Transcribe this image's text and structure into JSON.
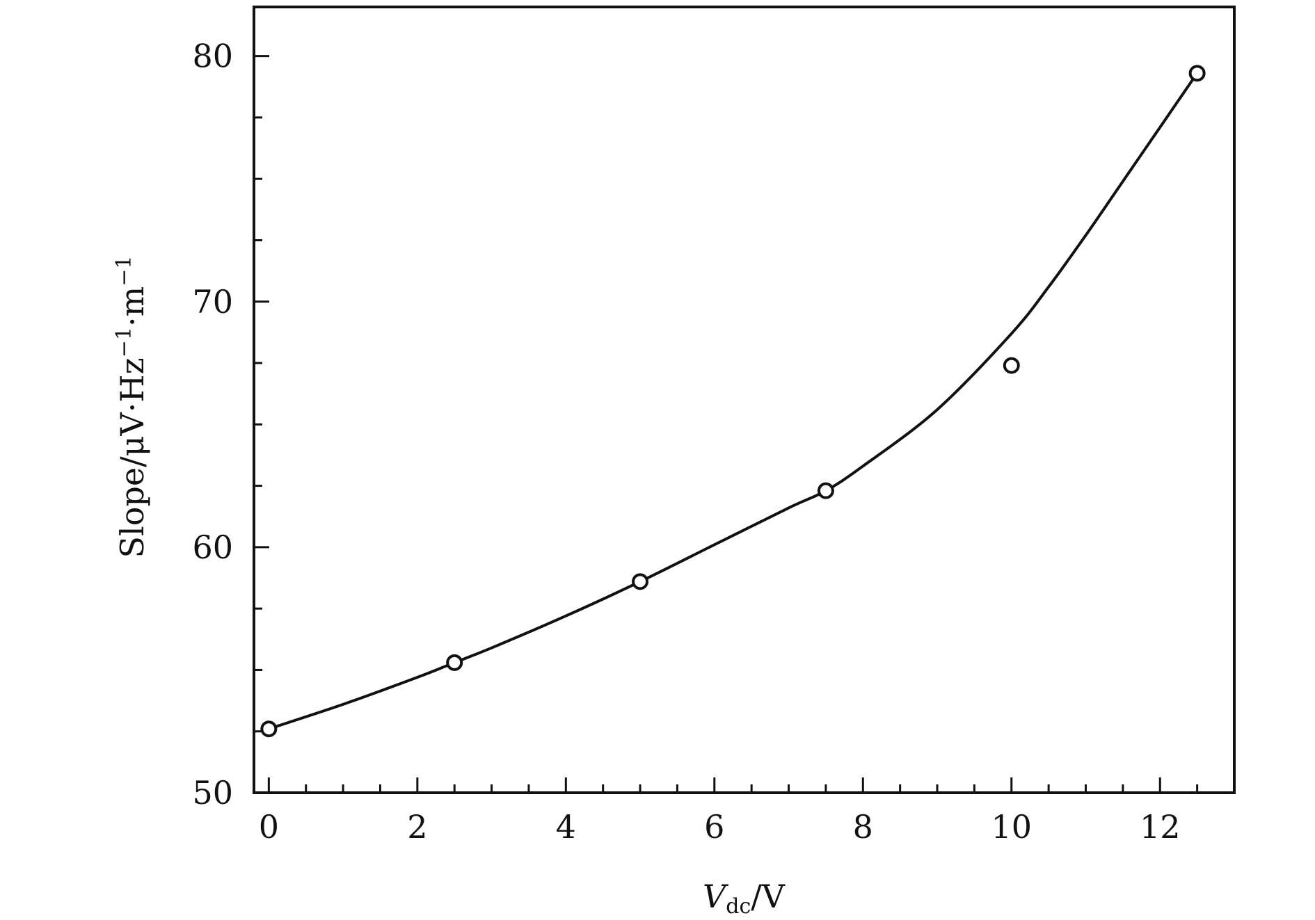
{
  "chart_data": {
    "type": "scatter",
    "title": "",
    "xlabel": {
      "main": "V",
      "sub": "dc",
      "rest": "/V"
    },
    "ylabel": {
      "main": "Slope/μV·Hz",
      "sup1": "−1",
      "mid": "·m",
      "sup2": "−1"
    },
    "xlim": [
      -0.2,
      13.0
    ],
    "ylim": [
      50,
      82
    ],
    "x_ticks": [
      0,
      2,
      4,
      6,
      8,
      10,
      12
    ],
    "x_tick_labels": [
      "0",
      "2",
      "4",
      "6",
      "8",
      "10",
      "12"
    ],
    "y_ticks": [
      50,
      60,
      70,
      80
    ],
    "y_tick_labels": [
      "50",
      "60",
      "70",
      "80"
    ],
    "x_minor_step": 0.5,
    "y_minor_step": 2.5,
    "grid": false,
    "legend": "none",
    "series": [
      {
        "marker": "open-circle",
        "x": [
          0,
          2.5,
          5,
          7.5,
          10,
          12.5
        ],
        "y": [
          52.6,
          55.3,
          58.6,
          62.3,
          67.4,
          79.3
        ]
      }
    ],
    "fit_curve": {
      "style": "solid-line",
      "x": [
        0,
        1,
        2,
        2.5,
        3,
        4,
        5,
        6,
        7,
        7.5,
        8,
        9,
        10,
        10.5,
        11,
        11.5,
        12,
        12.5
      ],
      "y": [
        52.6,
        53.6,
        54.7,
        55.3,
        55.9,
        57.2,
        58.6,
        60.1,
        61.6,
        62.3,
        63.3,
        65.6,
        68.7,
        70.6,
        72.7,
        74.9,
        77.1,
        79.3
      ]
    }
  }
}
